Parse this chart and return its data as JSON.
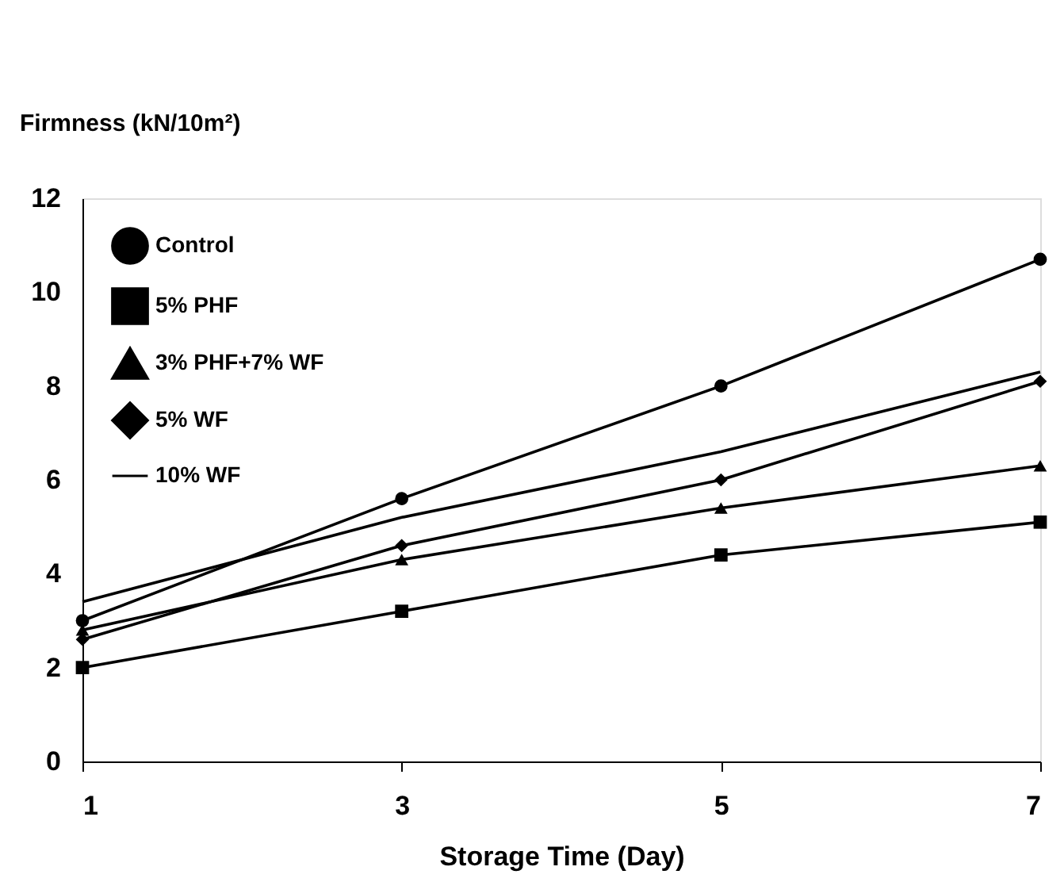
{
  "chart_data": {
    "type": "line",
    "ylabel": "Firmness (kN/10m²)",
    "xlabel": "Storage Time (Day)",
    "x": [
      1,
      3,
      5,
      7
    ],
    "xlim": [
      1,
      7
    ],
    "xticks": [
      1,
      3,
      5,
      7
    ],
    "ylim": [
      0,
      12
    ],
    "yticks": [
      0,
      2,
      4,
      6,
      8,
      10,
      12
    ],
    "grid": false,
    "legend": "top left",
    "line_style": "solid",
    "series": [
      {
        "name": "Control",
        "color": "#000000",
        "marker": "circle",
        "values": [
          3.0,
          5.6,
          8.0,
          10.7
        ]
      },
      {
        "name": "5% PHF",
        "color": "#000000",
        "marker": "square",
        "values": [
          2.0,
          3.2,
          4.4,
          5.1
        ]
      },
      {
        "name": "3% PHF+7% WF",
        "color": "#000000",
        "marker": "triangle",
        "values": [
          2.8,
          4.3,
          5.4,
          6.3
        ]
      },
      {
        "name": "5% WF",
        "color": "#000000",
        "marker": "diamond",
        "values": [
          2.6,
          4.6,
          6.0,
          8.1
        ]
      },
      {
        "name": "10% WF",
        "color": "#000000",
        "marker": "none",
        "values": [
          3.4,
          5.2,
          6.6,
          8.3
        ]
      }
    ]
  }
}
